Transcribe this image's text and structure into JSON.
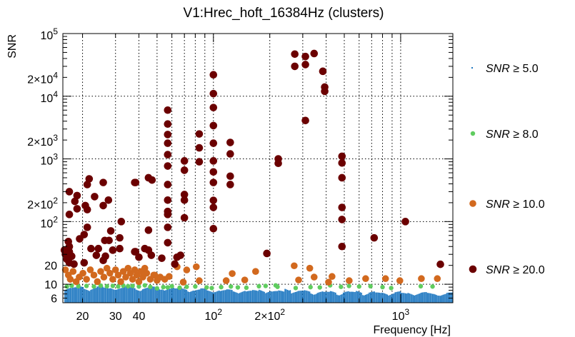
{
  "chart_data": {
    "type": "scatter",
    "title": "V1:Hrec_hoft_16384Hz (clusters)",
    "xlabel": "Frequency [Hz]",
    "ylabel": "SNR",
    "xscale": "log",
    "yscale": "log",
    "xlim": [
      15.7,
      1900
    ],
    "ylim": [
      5.07,
      100000
    ],
    "grid": true,
    "legend_position": "right",
    "x_ticks": [
      {
        "value": 20,
        "base": "20",
        "exp": ""
      },
      {
        "value": 30,
        "base": "30",
        "exp": ""
      },
      {
        "value": 40,
        "base": "40",
        "exp": ""
      },
      {
        "value": 100,
        "base": "10",
        "exp": "2"
      },
      {
        "value": 200,
        "base": "2×10",
        "exp": "2"
      },
      {
        "value": 1000,
        "base": "10",
        "exp": "3"
      }
    ],
    "y_ticks": [
      {
        "value": 100000,
        "base": "10",
        "exp": "5"
      },
      {
        "value": 20000,
        "base": "2×10",
        "exp": "4"
      },
      {
        "value": 10000,
        "base": "10",
        "exp": "4"
      },
      {
        "value": 2000,
        "base": "2×10",
        "exp": "3"
      },
      {
        "value": 1000,
        "base": "10",
        "exp": "3"
      },
      {
        "value": 200,
        "base": "2×10",
        "exp": "2"
      },
      {
        "value": 100,
        "base": "10",
        "exp": "2"
      },
      {
        "value": 20,
        "base": "20",
        "exp": ""
      },
      {
        "value": 10,
        "base": "10",
        "exp": ""
      },
      {
        "value": 6,
        "base": "6",
        "exp": ""
      }
    ],
    "series": [
      {
        "name": "SNR ≥ 5.0",
        "label_var": "SNR",
        "label_rest": " ≥ 5.0",
        "color": "#1f78c1",
        "marker": "point",
        "bin_edges_range": [
          16,
          1900
        ],
        "bin_max_snr": [
          9.2,
          9.0,
          9.3,
          8.8,
          9.1,
          9.4,
          8.9,
          9.2,
          9.0,
          9.3,
          9.1,
          8.8,
          9.0,
          9.2,
          8.7,
          9.0,
          8.9,
          8.6,
          8.8,
          8.5,
          8.3,
          8.6,
          8.2,
          8.4,
          8.1,
          8.3,
          8.0,
          8.2,
          7.9,
          8.1,
          8.6,
          8.0,
          7.8,
          8.0,
          9.0,
          7.8,
          7.9,
          8.1,
          7.7,
          7.8,
          7.6,
          7.9,
          7.5,
          7.8,
          7.6,
          8.0,
          7.5,
          7.7,
          7.4,
          7.6,
          7.5,
          7.7,
          7.3,
          7.6,
          7.4,
          7.5,
          7.3,
          7.4,
          7.2,
          7.4
        ]
      },
      {
        "name": "SNR ≥ 8.0",
        "label_var": "SNR",
        "label_rest": " ≥ 8.0",
        "color": "#5fcc5f",
        "marker": "circle",
        "points": [
          [
            16.5,
            9.2
          ],
          [
            17.5,
            9.5
          ],
          [
            19,
            9.3
          ],
          [
            21,
            9.4
          ],
          [
            23,
            9.2
          ],
          [
            25,
            9.5
          ],
          [
            27,
            9.3
          ],
          [
            29,
            9.4
          ],
          [
            31,
            9.2
          ],
          [
            33,
            9.5
          ],
          [
            35,
            9.3
          ],
          [
            37,
            9.4
          ],
          [
            40,
            9.2
          ],
          [
            43,
            9.6
          ],
          [
            46,
            9.1
          ],
          [
            50,
            8.6
          ],
          [
            54,
            9.0
          ],
          [
            57,
            8.9
          ],
          [
            60,
            9.3
          ],
          [
            66,
            8.8
          ],
          [
            72,
            9.1
          ],
          [
            80,
            9.2
          ],
          [
            92,
            8.9
          ],
          [
            98,
            8.7
          ],
          [
            110,
            9.0
          ],
          [
            124,
            9.2
          ],
          [
            135,
            8.9
          ],
          [
            150,
            8.8
          ],
          [
            175,
            9.3
          ],
          [
            190,
            9.4
          ],
          [
            215,
            9.6
          ],
          [
            220,
            9.1
          ],
          [
            275,
            8.7
          ],
          [
            330,
            9.0
          ],
          [
            370,
            8.9
          ],
          [
            420,
            9.6
          ],
          [
            480,
            9.1
          ],
          [
            530,
            9.4
          ],
          [
            600,
            9.2
          ],
          [
            690,
            9.3
          ],
          [
            800,
            9.0
          ],
          [
            890,
            8.7
          ],
          [
            1280,
            9.3
          ],
          [
            1480,
            9.2
          ]
        ]
      },
      {
        "name": "SNR ≥ 10.0",
        "label_var": "SNR",
        "label_rest": " ≥ 10.0",
        "color": "#d2691e",
        "marker": "circle",
        "points": [
          [
            16.2,
            17
          ],
          [
            16.8,
            14
          ],
          [
            17.2,
            12
          ],
          [
            17.8,
            16
          ],
          [
            18.5,
            11
          ],
          [
            19.2,
            13
          ],
          [
            20.1,
            15
          ],
          [
            21,
            12
          ],
          [
            22,
            17
          ],
          [
            23,
            14
          ],
          [
            24,
            11
          ],
          [
            25,
            16
          ],
          [
            26,
            13
          ],
          [
            27,
            18
          ],
          [
            28,
            15
          ],
          [
            29,
            12
          ],
          [
            30,
            17
          ],
          [
            31,
            14
          ],
          [
            32,
            11
          ],
          [
            33,
            16
          ],
          [
            34,
            13
          ],
          [
            35,
            18
          ],
          [
            36,
            15
          ],
          [
            37,
            12
          ],
          [
            38,
            17
          ],
          [
            39,
            14
          ],
          [
            40,
            11
          ],
          [
            41,
            16
          ],
          [
            42,
            13
          ],
          [
            43,
            18
          ],
          [
            44,
            15
          ],
          [
            46,
            12
          ],
          [
            48,
            14
          ],
          [
            50,
            11.5
          ],
          [
            52,
            13
          ],
          [
            55,
            12
          ],
          [
            48.6,
            14
          ],
          [
            58,
            13.3
          ],
          [
            69,
            10.8
          ],
          [
            84,
            11.4
          ],
          [
            117,
            11.4
          ],
          [
            126,
            14.8
          ],
          [
            147,
            11.7
          ],
          [
            285,
            11.7
          ],
          [
            345,
            13
          ],
          [
            430,
            13.3
          ],
          [
            830,
            12.3
          ],
          [
            990,
            11.4
          ],
          [
            64,
            19
          ],
          [
            72,
            16.9
          ],
          [
            81,
            19
          ],
          [
            168,
            16
          ],
          [
            270,
            19.7
          ],
          [
            327,
            18
          ],
          [
            412,
            10.8
          ],
          [
            531,
            11.4
          ],
          [
            650,
            12.3
          ],
          [
            1290,
            12.3
          ],
          [
            1570,
            12.3
          ]
        ]
      },
      {
        "name": "SNR ≥ 20.0",
        "label_var": "SNR",
        "label_rest": " ≥ 20.0",
        "color": "#6b0000",
        "marker": "circle",
        "points": [
          [
            100,
            22000
          ],
          [
            100,
            11000
          ],
          [
            100,
            6600
          ],
          [
            100,
            3400
          ],
          [
            100,
            1780
          ],
          [
            100,
            930
          ],
          [
            100,
            620
          ],
          [
            100,
            420
          ],
          [
            100,
            218
          ],
          [
            100,
            168
          ],
          [
            100,
            77
          ],
          [
            84,
            2500
          ],
          [
            84,
            1500
          ],
          [
            84,
            900
          ],
          [
            57,
            6000
          ],
          [
            57,
            3600
          ],
          [
            57,
            2450
          ],
          [
            57,
            1780
          ],
          [
            57,
            1170
          ],
          [
            57,
            770
          ],
          [
            57,
            390
          ],
          [
            57,
            220
          ],
          [
            57,
            145
          ],
          [
            57,
            130
          ],
          [
            57,
            81
          ],
          [
            57,
            46
          ],
          [
            70,
            930
          ],
          [
            70,
            660
          ],
          [
            70,
            270
          ],
          [
            70,
            220
          ],
          [
            70,
            115
          ],
          [
            123,
            1830
          ],
          [
            123,
            1200
          ],
          [
            123,
            530
          ],
          [
            123,
            390
          ],
          [
            222,
            1000
          ],
          [
            222,
            850
          ],
          [
            272,
            47000
          ],
          [
            272,
            30000
          ],
          [
            310,
            43000
          ],
          [
            310,
            32000
          ],
          [
            310,
            4100
          ],
          [
            345,
            48000
          ],
          [
            384,
            25000
          ],
          [
            393,
            14000
          ],
          [
            393,
            12000
          ],
          [
            486,
            1100
          ],
          [
            486,
            860
          ],
          [
            486,
            500
          ],
          [
            486,
            168
          ],
          [
            486,
            108
          ],
          [
            486,
            40
          ],
          [
            722,
            55
          ],
          [
            1060,
            100
          ],
          [
            1630,
            20.8
          ],
          [
            193,
            31
          ],
          [
            45,
            500
          ],
          [
            45,
            73
          ],
          [
            45,
            35
          ],
          [
            38,
            420
          ],
          [
            38,
            33
          ],
          [
            17,
            300
          ],
          [
            17,
            130
          ],
          [
            17,
            33
          ],
          [
            21.7,
            480
          ],
          [
            21.2,
            390
          ],
          [
            18.7,
            260
          ],
          [
            18.2,
            210
          ],
          [
            18.7,
            160
          ],
          [
            20.7,
            180
          ],
          [
            21.2,
            155
          ],
          [
            23.2,
            250
          ],
          [
            25.8,
            420
          ],
          [
            25.8,
            180
          ],
          [
            27.5,
            220
          ],
          [
            32.2,
            100
          ],
          [
            38.4,
            420
          ],
          [
            47,
            460
          ],
          [
            16.8,
            48
          ],
          [
            19.3,
            53
          ],
          [
            20.4,
            62
          ],
          [
            21.2,
            81
          ],
          [
            28.3,
            71
          ],
          [
            26.3,
            50
          ],
          [
            27.7,
            50
          ],
          [
            22.2,
            37
          ],
          [
            24.3,
            37
          ],
          [
            23.7,
            29
          ],
          [
            31.6,
            55
          ],
          [
            31.6,
            37
          ],
          [
            29,
            35
          ],
          [
            26.5,
            28
          ],
          [
            25.8,
            24
          ],
          [
            20.4,
            22
          ],
          [
            38.4,
            33
          ],
          [
            43,
            37
          ],
          [
            40,
            27
          ],
          [
            46.6,
            29
          ],
          [
            53,
            26
          ],
          [
            63.9,
            27
          ],
          [
            66.7,
            29
          ],
          [
            62.2,
            21
          ],
          [
            16.2,
            30
          ],
          [
            16.5,
            25
          ],
          [
            17,
            22
          ],
          [
            16,
            35
          ],
          [
            17.5,
            28
          ],
          [
            18,
            21
          ],
          [
            17,
            40
          ]
        ]
      }
    ]
  }
}
